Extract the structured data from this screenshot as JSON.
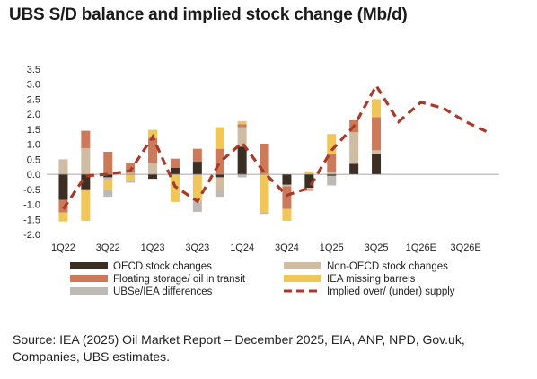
{
  "title": "UBS S/D balance and implied stock change (Mb/d)",
  "source": "Source: IEA (2025) Oil Market Report – December 2025, EIA, ANP, NPD, Gov.uk, Companies, UBS estimates.",
  "chart_data": {
    "type": "bar",
    "stacked": true,
    "title": "UBS S/D balance and implied stock change (Mb/d)",
    "ylim": [
      -2.0,
      3.5
    ],
    "yticks": [
      "3.5",
      "3.0",
      "2.5",
      "2.0",
      "1.5",
      "1.0",
      "0.5",
      "0.0",
      "-0.5",
      "-1.0",
      "-1.5",
      "-2.0"
    ],
    "ytick_values": [
      3.5,
      3.0,
      2.5,
      2.0,
      1.5,
      1.0,
      0.5,
      0.0,
      -0.5,
      -1.0,
      -1.5,
      -2.0
    ],
    "categories": [
      "1Q22",
      "2Q22",
      "3Q22",
      "4Q22",
      "1Q23",
      "2Q23",
      "3Q23",
      "4Q23",
      "1Q24",
      "2Q24",
      "3Q24",
      "4Q24",
      "1Q25",
      "2Q25",
      "3Q25",
      "4Q25",
      "1Q26E",
      "2Q26E",
      "3Q26E",
      "4Q26E"
    ],
    "xtick_labels": [
      "1Q22",
      "3Q22",
      "1Q23",
      "3Q23",
      "1Q24",
      "3Q24",
      "1Q25",
      "3Q25",
      "1Q26E",
      "3Q26E"
    ],
    "xtick_indices": [
      0,
      2,
      4,
      6,
      8,
      10,
      12,
      14,
      16,
      18
    ],
    "grid": false,
    "legend_position": "bottom",
    "series": [
      {
        "name": "OECD stock changes",
        "color": "#3d2e24",
        "values": [
          -0.85,
          -0.5,
          -0.1,
          0,
          -0.15,
          0.22,
          0.42,
          -0.1,
          0.92,
          0,
          -0.35,
          -0.45,
          -0.05,
          0.35,
          0.68,
          null,
          null,
          null,
          null,
          null
        ]
      },
      {
        "name": "Non-OECD stock changes",
        "color": "#cfbca3",
        "values": [
          0.5,
          0.87,
          -0.1,
          0.05,
          0.38,
          -0.02,
          -0.05,
          -0.45,
          0.65,
          0.02,
          -0.05,
          -0.05,
          0.08,
          1.05,
          0.12,
          null,
          null,
          null,
          null,
          null
        ]
      },
      {
        "name": "Floating storage/ oil in transit",
        "color": "#cc7a5a",
        "values": [
          -0.42,
          0.58,
          0.75,
          0.33,
          0.82,
          0.3,
          0.43,
          0.85,
          0.1,
          1.0,
          -0.75,
          -0.05,
          0.58,
          0.4,
          1.1,
          null,
          null,
          null,
          null,
          null
        ]
      },
      {
        "name": "IEA missing barrels",
        "color": "#f0c659",
        "values": [
          -0.3,
          -1.05,
          -0.3,
          -0.2,
          0.28,
          -0.9,
          -0.85,
          0.72,
          0.1,
          -1.27,
          -0.4,
          0.1,
          0.68,
          0.0,
          0.6,
          null,
          null,
          null,
          null,
          null
        ]
      },
      {
        "name": "UBSe/IEA differences",
        "color": "#bdbab6",
        "values": [
          0.0,
          0.0,
          -0.25,
          -0.08,
          0.0,
          0.0,
          -0.35,
          -0.2,
          -0.1,
          -0.05,
          0.0,
          0.0,
          -0.32,
          0.0,
          0.0,
          null,
          null,
          null,
          null,
          null
        ]
      }
    ],
    "line": {
      "name": "Implied over/ (under) supply",
      "color": "#a83a2a",
      "style": "dashed",
      "values": [
        -1.15,
        -0.05,
        0.0,
        0.12,
        1.25,
        -0.4,
        -0.9,
        0.4,
        1.05,
        0.05,
        -0.7,
        -0.45,
        0.8,
        1.6,
        2.95,
        1.75,
        2.4,
        2.2,
        1.75,
        1.4
      ]
    }
  }
}
